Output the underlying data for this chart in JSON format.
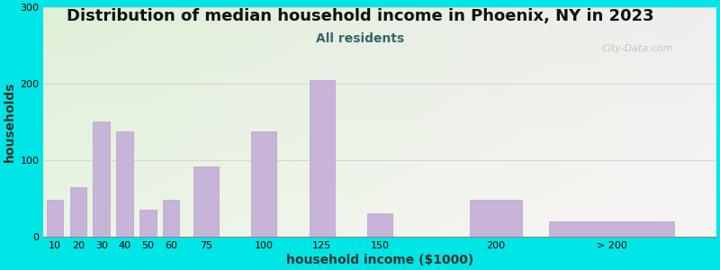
{
  "title": "Distribution of median household income in Phoenix, NY in 2023",
  "subtitle": "All residents",
  "xlabel": "household income ($1000)",
  "ylabel": "households",
  "background_color": "#00e5e5",
  "bar_color": "#c8b4d8",
  "bar_edge_color": "#b8a0cc",
  "bar_positions": [
    10,
    20,
    30,
    40,
    50,
    60,
    75,
    100,
    125,
    150,
    200,
    250
  ],
  "bar_widths": [
    8,
    8,
    8,
    8,
    8,
    8,
    12,
    12,
    12,
    12,
    25,
    60
  ],
  "values": [
    48,
    65,
    150,
    138,
    35,
    48,
    92,
    138,
    205,
    30,
    48,
    20
  ],
  "xtick_positions": [
    10,
    20,
    30,
    40,
    50,
    60,
    75,
    100,
    125,
    150,
    200,
    250
  ],
  "xtick_labels": [
    "10",
    "20",
    "30",
    "40",
    "50",
    "60",
    "75",
    "100",
    "125",
    "150",
    "200",
    "> 200"
  ],
  "xlim": [
    5,
    295
  ],
  "ylim": [
    0,
    300
  ],
  "yticks": [
    0,
    100,
    200,
    300
  ],
  "watermark": "City-Data.com",
  "title_fontsize": 13,
  "subtitle_fontsize": 10,
  "axis_label_fontsize": 10,
  "tick_fontsize": 8,
  "subtitle_color": "#336666"
}
